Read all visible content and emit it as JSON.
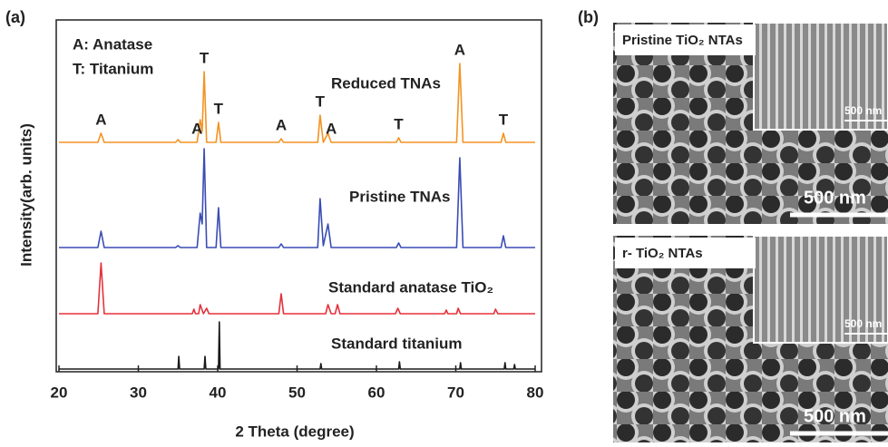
{
  "chart_data": {
    "type": "line",
    "panel_label": "(a)",
    "x_label": "2 Theta (degree)",
    "y_label": "Intensity(arb. units)",
    "xlim": [
      20,
      80
    ],
    "xticks": [
      20,
      30,
      40,
      50,
      60,
      70,
      80
    ],
    "notes": [
      "A: Anatase",
      "T: Titanium"
    ],
    "peak_labels": [
      {
        "text": "A",
        "x": 25.3
      },
      {
        "text": "A",
        "x": 37.4
      },
      {
        "text": "T",
        "x": 38.3
      },
      {
        "text": "T",
        "x": 40.1
      },
      {
        "text": "A",
        "x": 48
      },
      {
        "text": "T",
        "x": 52.9
      },
      {
        "text": "A",
        "x": 54.3
      },
      {
        "text": "T",
        "x": 62.8
      },
      {
        "text": "A",
        "x": 70.5
      },
      {
        "text": "T",
        "x": 76
      }
    ],
    "series": [
      {
        "name": "Reduced TNAs",
        "color": "#f39323",
        "x": [
          20,
          24.9,
          25.3,
          25.7,
          34.7,
          35,
          35.3,
          37.4,
          37.8,
          38.05,
          38.3,
          38.6,
          39.8,
          40.1,
          40.4,
          47.7,
          48,
          48.3,
          52.6,
          52.9,
          53.3,
          53.9,
          54.3,
          62.5,
          62.8,
          63.1,
          70.1,
          70.5,
          70.9,
          75.7,
          76,
          76.3,
          80
        ],
        "values": [
          0,
          0,
          10,
          0,
          0,
          3,
          0,
          0,
          25,
          12,
          78,
          0,
          0,
          22,
          0,
          0,
          4,
          0,
          0,
          30,
          0,
          10,
          0,
          0,
          5,
          0,
          0,
          87,
          0,
          0,
          10,
          0,
          0
        ]
      },
      {
        "name": "Pristine TNAs",
        "color": "#3a4cb5",
        "x": [
          20,
          24.9,
          25.3,
          25.7,
          34.7,
          35,
          35.3,
          37.4,
          37.8,
          38.05,
          38.3,
          38.6,
          39.8,
          40.1,
          40.4,
          47.7,
          48,
          48.3,
          52.6,
          52.9,
          53.3,
          53.9,
          54.3,
          62.5,
          62.8,
          63.1,
          70.1,
          70.5,
          70.9,
          75.7,
          76,
          76.3,
          80
        ],
        "values": [
          4,
          4,
          22,
          4,
          4,
          6,
          4,
          4,
          42,
          30,
          113,
          4,
          4,
          48,
          4,
          4,
          8,
          4,
          4,
          58,
          6,
          30,
          4,
          4,
          9,
          4,
          4,
          103,
          4,
          4,
          17,
          4,
          4
        ]
      },
      {
        "name": "Standard anatase TiO₂",
        "color": "#e5313b",
        "x": [
          20,
          24.9,
          25.3,
          25.7,
          36.8,
          37,
          37.2,
          37.6,
          37.8,
          38.2,
          38.6,
          38.9,
          47.7,
          48,
          48.3,
          53.6,
          53.9,
          54.3,
          54.8,
          55.1,
          55.4,
          62.4,
          62.7,
          63,
          68.6,
          68.8,
          69,
          70.1,
          70.3,
          70.6,
          74.8,
          75,
          75.3,
          80
        ],
        "values": [
          0,
          0,
          56,
          0,
          0,
          5,
          0,
          0,
          10,
          0,
          6,
          0,
          0,
          22,
          0,
          0,
          10,
          0,
          0,
          10,
          0,
          0,
          6,
          0,
          0,
          4,
          0,
          0,
          6,
          0,
          0,
          5,
          0,
          0
        ]
      },
      {
        "name": "Standard titanium",
        "color": "#1a1a1a",
        "x": [
          20,
          35,
          35.1,
          35.2,
          38.3,
          38.4,
          38.5,
          40.1,
          40.2,
          40.3,
          52.9,
          53,
          53.1,
          62.8,
          62.9,
          63,
          70.5,
          70.6,
          70.7,
          76.1,
          76.2,
          76.3,
          77.3,
          77.4,
          77.5,
          80
        ],
        "values": [
          0,
          0,
          14,
          0,
          0,
          14,
          0,
          0,
          52,
          0,
          0,
          6,
          0,
          0,
          8,
          0,
          0,
          7,
          0,
          0,
          7,
          0,
          0,
          5,
          0,
          0
        ]
      }
    ]
  },
  "panel_b": {
    "label": "(b)",
    "images": [
      {
        "caption": "Pristine TiO₂ NTAs",
        "scale": "500 nm",
        "inset_scale": "500 nm"
      },
      {
        "caption": "r- TiO₂ NTAs",
        "scale": "500 nm",
        "inset_scale": "500 nm"
      }
    ]
  }
}
